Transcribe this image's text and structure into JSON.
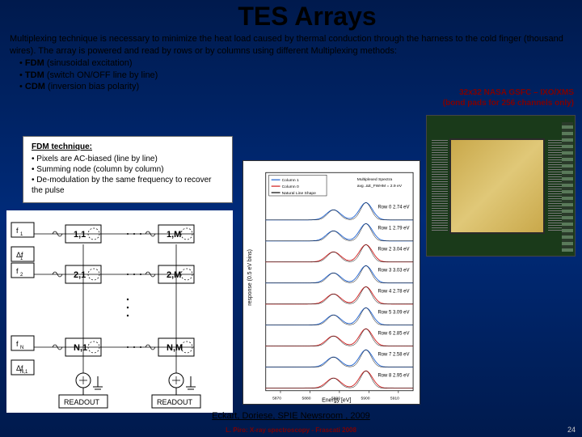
{
  "title": "TES Arrays",
  "intro": "Multiplexing technique is necessary to minimize the heat load caused by thermal conduction through the harness to the cold finger (thousand wires). The array is powered and read by rows or by columns using different Multiplexing methods:",
  "bullets": [
    {
      "name": "FDM",
      "desc": "(sinusoidal excitation)"
    },
    {
      "name": "TDM",
      "desc": "(switch ON/OFF line by line)"
    },
    {
      "name": "CDM",
      "desc": "(inversion bias polarity)"
    }
  ],
  "side_label_1": "32x32 NASA GSFC – IXO/XMS",
  "side_label_2": "(bond pads for 256 channels only)",
  "fdm": {
    "heading": "FDM technique:",
    "items": [
      "Pixels are AC-biased (line by line)",
      "Summing node (column by column)",
      "De-modulation by the same frequency to recover the pulse"
    ]
  },
  "schematic": {
    "freq_labels": [
      "f",
      "Δf",
      "f",
      "f",
      "Δf"
    ],
    "freq_sub": [
      "1",
      "1",
      "2",
      "N",
      "N,1"
    ],
    "cells": [
      [
        "1,1",
        "1,M"
      ],
      [
        "2,1",
        "2,M"
      ],
      [
        "N,1",
        "N,M"
      ]
    ],
    "readout_label": "READOUT",
    "colors": {
      "box_stroke": "#000000",
      "line": "#000000",
      "gnd": "#000000"
    }
  },
  "spectrum": {
    "title": "Multiplexed Spectra",
    "subtitle": "avg. ΔE_FWHM = 2.9 eV",
    "legend": [
      "Column 1",
      "Column 0",
      "Natural Line Shape"
    ],
    "legend_colors": [
      "#1a5fd0",
      "#d01a1a",
      "#000000"
    ],
    "x_label": "Energy [eV]",
    "y_label": "response (0.5 eV bins)",
    "x_ticks": [
      5870,
      5880,
      5890,
      5900,
      5910
    ],
    "rows": [
      {
        "label": "Row 0",
        "de": "2.74 eV",
        "color": "#1a5fd0"
      },
      {
        "label": "Row 1",
        "de": "2.79 eV",
        "color": "#1a5fd0"
      },
      {
        "label": "Row 2",
        "de": "3.04 eV",
        "color": "#d01a1a"
      },
      {
        "label": "Row 3",
        "de": "3.03 eV",
        "color": "#1a5fd0"
      },
      {
        "label": "Row 4",
        "de": "2.78 eV",
        "color": "#d01a1a"
      },
      {
        "label": "Row 5",
        "de": "3.09 eV",
        "color": "#1a5fd0"
      },
      {
        "label": "Row 6",
        "de": "2.85 eV",
        "color": "#d01a1a"
      },
      {
        "label": "Row 7",
        "de": "2.58 eV",
        "color": "#1a5fd0"
      },
      {
        "label": "Row 8",
        "de": "2.95 eV",
        "color": "#d01a1a"
      }
    ],
    "bg": "#ffffff",
    "axis_color": "#000000"
  },
  "citation_text": "Eckart, Doriese, SPIE Newsroom , 2009",
  "footer_text": "L. Piro: X-ray spectroscopy - Frascati 2008",
  "page_number": "24"
}
